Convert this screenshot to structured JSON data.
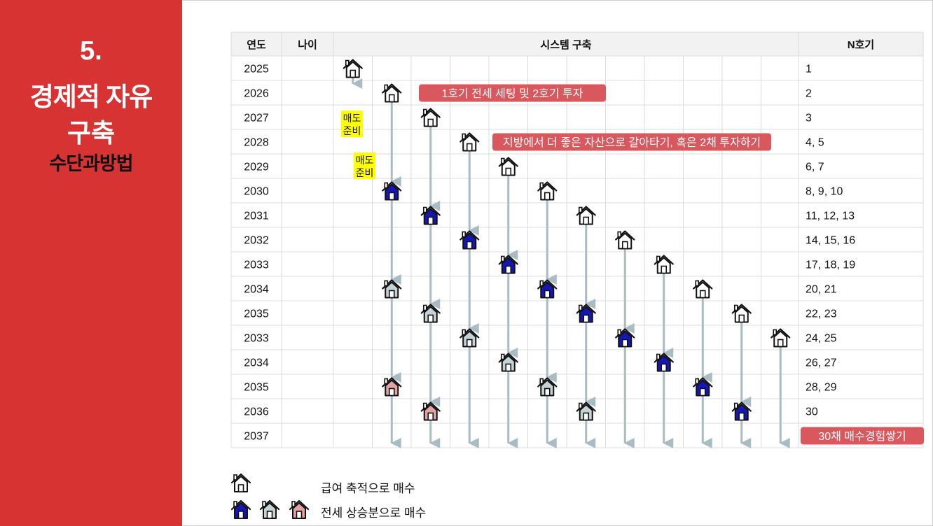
{
  "sidebar": {
    "number": "5.",
    "title_line1": "경제적 자유",
    "title_line2": "구축",
    "subtitle": "수단과방법"
  },
  "table": {
    "headers": {
      "year": "연도",
      "age": "나이",
      "system": "시스템 구축",
      "count": "N호기"
    },
    "rows": [
      {
        "year": "2025",
        "count": "1"
      },
      {
        "year": "2026",
        "count": "2"
      },
      {
        "year": "2027",
        "count": "3"
      },
      {
        "year": "2028",
        "count": "4, 5"
      },
      {
        "year": "2029",
        "count": "6, 7"
      },
      {
        "year": "2030",
        "count": "8, 9, 10"
      },
      {
        "year": "2031",
        "count": "11, 12, 13"
      },
      {
        "year": "2032",
        "count": "14, 15, 16"
      },
      {
        "year": "2033",
        "count": "17, 18, 19"
      },
      {
        "year": "2034",
        "count": "20, 21"
      },
      {
        "year": "2035",
        "count": "22, 23"
      },
      {
        "year": "2033",
        "count": "24, 25"
      },
      {
        "year": "2034",
        "count": "26, 27"
      },
      {
        "year": "2035",
        "count": "28, 29"
      },
      {
        "year": "2036",
        "count": "30"
      },
      {
        "year": "2037",
        "count": ""
      }
    ]
  },
  "callouts": {
    "first": "1호기 전세 세팅 및 2호기 투자",
    "second": "지방에서 더 좋은 자산으로 갈아타기, 혹은 2채 투자하기",
    "final": "30채 매수경험쌓기"
  },
  "notes": [
    {
      "line1": "매도",
      "line2": "준비"
    },
    {
      "line1": "매도",
      "line2": "준비"
    }
  ],
  "colors": {
    "sidebar": "#d83333",
    "callout": "#d9585d",
    "note": "#ffff00",
    "arrow": "#a9bcc3",
    "house_outline": "#ffffff",
    "house_blue": "#1616b8",
    "house_gray": "#c5d2d6",
    "house_pink": "#e2a3a3"
  },
  "houses": [
    {
      "row": 0,
      "col": 0,
      "style": "outline"
    },
    {
      "row": 1,
      "col": 1,
      "style": "outline"
    },
    {
      "row": 2,
      "col": 2,
      "style": "outline"
    },
    {
      "row": 3,
      "col": 3,
      "style": "outline"
    },
    {
      "row": 4,
      "col": 4,
      "style": "outline"
    },
    {
      "row": 5,
      "col": 1,
      "style": "blue"
    },
    {
      "row": 5,
      "col": 5,
      "style": "outline"
    },
    {
      "row": 6,
      "col": 2,
      "style": "blue"
    },
    {
      "row": 6,
      "col": 6,
      "style": "outline"
    },
    {
      "row": 7,
      "col": 3,
      "style": "blue"
    },
    {
      "row": 7,
      "col": 7,
      "style": "outline"
    },
    {
      "row": 8,
      "col": 4,
      "style": "blue"
    },
    {
      "row": 8,
      "col": 8,
      "style": "outline"
    },
    {
      "row": 9,
      "col": 1,
      "style": "gray"
    },
    {
      "row": 9,
      "col": 5,
      "style": "blue"
    },
    {
      "row": 9,
      "col": 9,
      "style": "outline"
    },
    {
      "row": 10,
      "col": 2,
      "style": "gray"
    },
    {
      "row": 10,
      "col": 6,
      "style": "blue"
    },
    {
      "row": 10,
      "col": 10,
      "style": "outline"
    },
    {
      "row": 11,
      "col": 3,
      "style": "gray"
    },
    {
      "row": 11,
      "col": 7,
      "style": "blue"
    },
    {
      "row": 11,
      "col": 11,
      "style": "outline"
    },
    {
      "row": 12,
      "col": 4,
      "style": "gray"
    },
    {
      "row": 12,
      "col": 8,
      "style": "blue"
    },
    {
      "row": 13,
      "col": 1,
      "style": "pink"
    },
    {
      "row": 13,
      "col": 5,
      "style": "gray"
    },
    {
      "row": 13,
      "col": 9,
      "style": "blue"
    },
    {
      "row": 14,
      "col": 2,
      "style": "pink"
    },
    {
      "row": 14,
      "col": 6,
      "style": "gray"
    },
    {
      "row": 14,
      "col": 10,
      "style": "blue"
    }
  ],
  "arrows": [
    {
      "col": 0,
      "from": 0,
      "to": 1
    },
    {
      "col": 1,
      "from": 1,
      "to": 5
    },
    {
      "col": 1,
      "from": 5,
      "to": 9
    },
    {
      "col": 1,
      "from": 9,
      "to": 13
    },
    {
      "col": 1,
      "from": 13,
      "to": 15
    },
    {
      "col": 2,
      "from": 2,
      "to": 6
    },
    {
      "col": 2,
      "from": 6,
      "to": 10
    },
    {
      "col": 2,
      "from": 10,
      "to": 14
    },
    {
      "col": 2,
      "from": 14,
      "to": 15
    },
    {
      "col": 3,
      "from": 3,
      "to": 7
    },
    {
      "col": 3,
      "from": 7,
      "to": 11
    },
    {
      "col": 3,
      "from": 11,
      "to": 15
    },
    {
      "col": 4,
      "from": 4,
      "to": 8
    },
    {
      "col": 4,
      "from": 8,
      "to": 12
    },
    {
      "col": 4,
      "from": 12,
      "to": 15
    },
    {
      "col": 5,
      "from": 5,
      "to": 9
    },
    {
      "col": 5,
      "from": 9,
      "to": 13
    },
    {
      "col": 5,
      "from": 13,
      "to": 15
    },
    {
      "col": 6,
      "from": 6,
      "to": 10
    },
    {
      "col": 6,
      "from": 10,
      "to": 14
    },
    {
      "col": 6,
      "from": 14,
      "to": 15
    },
    {
      "col": 7,
      "from": 7,
      "to": 11
    },
    {
      "col": 7,
      "from": 11,
      "to": 15
    },
    {
      "col": 8,
      "from": 8,
      "to": 12
    },
    {
      "col": 8,
      "from": 12,
      "to": 15
    },
    {
      "col": 9,
      "from": 9,
      "to": 13
    },
    {
      "col": 9,
      "from": 13,
      "to": 15
    },
    {
      "col": 10,
      "from": 10,
      "to": 14
    },
    {
      "col": 10,
      "from": 14,
      "to": 15
    },
    {
      "col": 11,
      "from": 11,
      "to": 15
    }
  ],
  "legend": {
    "item1": "급여 축적으로 매수",
    "item2": "전세 상승분으로 매수"
  }
}
